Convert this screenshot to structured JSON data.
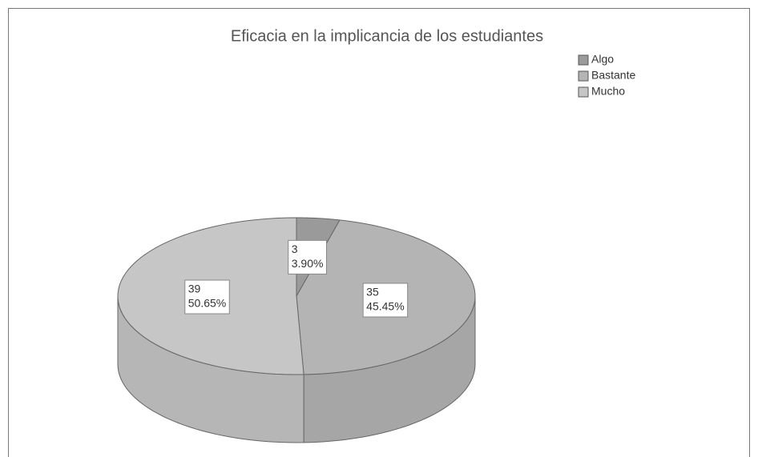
{
  "chart_data": {
    "type": "pie3d",
    "title": "Eficacia en la implicancia de los estudiantes",
    "categories": [
      "Algo",
      "Bastante",
      "Mucho"
    ],
    "values": [
      3,
      35,
      39
    ],
    "percent_labels": [
      "3.90%",
      "45.45%",
      "50.65%"
    ],
    "colors": [
      "#9a9a9a",
      "#b4b4b4",
      "#c6c6c6"
    ],
    "legend": "top-right"
  }
}
